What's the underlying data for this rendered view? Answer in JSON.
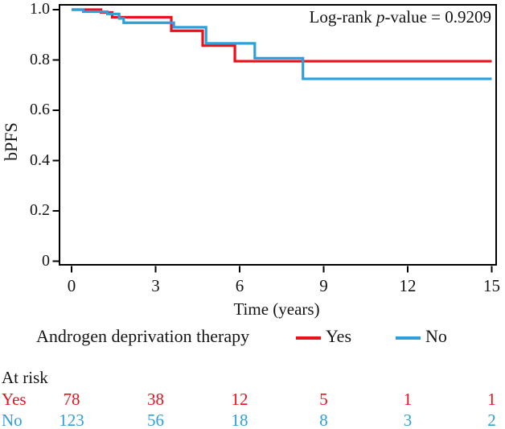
{
  "chart_data": {
    "type": "line",
    "subtype": "kaplan-meier-step",
    "title": "",
    "xlabel": "Time (years)",
    "ylabel": "bPFS",
    "xlim": [
      0,
      15
    ],
    "ylim": [
      0,
      1.0
    ],
    "xticks": [
      0,
      3,
      6,
      9,
      12,
      15
    ],
    "yticks": [
      {
        "label": "1.0",
        "value": 1.0
      },
      {
        "label": "0.8",
        "value": 0.8
      },
      {
        "label": "0.6",
        "value": 0.6
      },
      {
        "label": "0.4",
        "value": 0.4
      },
      {
        "label": "0.2",
        "value": 0.2
      },
      {
        "label": "0",
        "value": 0.0
      }
    ],
    "grid": false,
    "frame": "full-box",
    "annotation": {
      "prefix": "Log-rank ",
      "italic": "p",
      "suffix": "-value = 0.9209"
    },
    "legend": {
      "title": "Androgen deprivation therapy",
      "position": "below-axis"
    },
    "series": [
      {
        "name": "Yes",
        "color": "#e8121d",
        "points": [
          [
            0,
            1.0
          ],
          [
            1.05,
            0.989
          ],
          [
            1.45,
            0.97
          ],
          [
            3.56,
            0.916
          ],
          [
            4.68,
            0.857
          ],
          [
            5.83,
            0.795
          ],
          [
            15,
            0.795
          ]
        ]
      },
      {
        "name": "No",
        "color": "#2d9fd9",
        "points": [
          [
            0,
            1.0
          ],
          [
            0.42,
            0.992
          ],
          [
            1.28,
            0.983
          ],
          [
            1.7,
            0.965
          ],
          [
            1.86,
            0.948
          ],
          [
            3.65,
            0.93
          ],
          [
            4.8,
            0.866
          ],
          [
            6.54,
            0.807
          ],
          [
            8.26,
            0.725
          ],
          [
            15,
            0.725
          ]
        ]
      }
    ],
    "at_risk": {
      "header": "At risk",
      "times": [
        0,
        3,
        6,
        9,
        12,
        15
      ],
      "rows": [
        {
          "name": "Yes",
          "color": "#e8121d",
          "counts": [
            78,
            38,
            12,
            5,
            1,
            1
          ]
        },
        {
          "name": "No",
          "color": "#2d9fd9",
          "counts": [
            123,
            56,
            18,
            8,
            3,
            2
          ]
        }
      ]
    }
  },
  "colors": {
    "frame": "#000000",
    "text": "#141414",
    "background": "#ffffff",
    "yes_red": "#e8121d",
    "no_blue": "#2d9fd9"
  }
}
